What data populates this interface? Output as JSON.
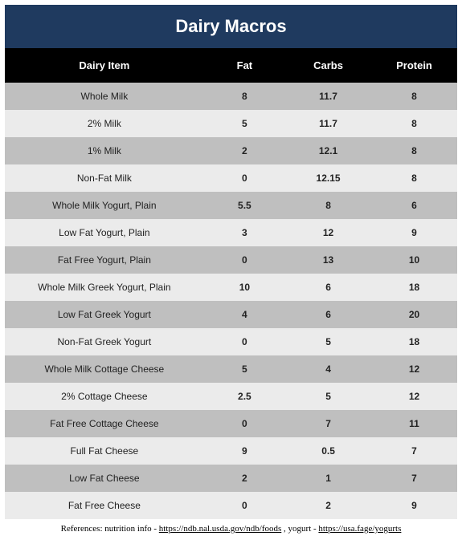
{
  "title": "Dairy Macros",
  "columns": [
    "Dairy Item",
    "Fat",
    "Carbs",
    "Protein"
  ],
  "rows": [
    {
      "item": "Whole Milk",
      "fat": "8",
      "carbs": "11.7",
      "protein": "8"
    },
    {
      "item": "2% Milk",
      "fat": "5",
      "carbs": "11.7",
      "protein": "8"
    },
    {
      "item": "1% Milk",
      "fat": "2",
      "carbs": "12.1",
      "protein": "8"
    },
    {
      "item": "Non-Fat Milk",
      "fat": "0",
      "carbs": "12.15",
      "protein": "8"
    },
    {
      "item": "Whole Milk Yogurt, Plain",
      "fat": "5.5",
      "carbs": "8",
      "protein": "6"
    },
    {
      "item": "Low Fat Yogurt, Plain",
      "fat": "3",
      "carbs": "12",
      "protein": "9"
    },
    {
      "item": "Fat Free Yogurt, Plain",
      "fat": "0",
      "carbs": "13",
      "protein": "10"
    },
    {
      "item": "Whole Milk Greek Yogurt, Plain",
      "fat": "10",
      "carbs": "6",
      "protein": "18"
    },
    {
      "item": "Low Fat Greek Yogurt",
      "fat": "4",
      "carbs": "6",
      "protein": "20"
    },
    {
      "item": "Non-Fat Greek Yogurt",
      "fat": "0",
      "carbs": "5",
      "protein": "18"
    },
    {
      "item": "Whole Milk Cottage Cheese",
      "fat": "5",
      "carbs": "4",
      "protein": "12"
    },
    {
      "item": "2% Cottage Cheese",
      "fat": "2.5",
      "carbs": "5",
      "protein": "12"
    },
    {
      "item": "Fat Free Cottage Cheese",
      "fat": "0",
      "carbs": "7",
      "protein": "11"
    },
    {
      "item": "Full Fat Cheese",
      "fat": "9",
      "carbs": "0.5",
      "protein": "7"
    },
    {
      "item": "Low Fat Cheese",
      "fat": "2",
      "carbs": "1",
      "protein": "7"
    },
    {
      "item": "Fat Free Cheese",
      "fat": "0",
      "carbs": "2",
      "protein": "9"
    }
  ],
  "footnote": {
    "prefix": "References: nutrition info - ",
    "link1_text": "https://ndb.nal.usda.gov/ndb/foods",
    "mid": " , yogurt - ",
    "link2_text": "https://usa.fage/yogurts"
  },
  "colors": {
    "title_bg": "#1f3a5f",
    "header_bg": "#000000",
    "row_dark": "#bfbfbf",
    "row_light": "#ebebeb"
  }
}
